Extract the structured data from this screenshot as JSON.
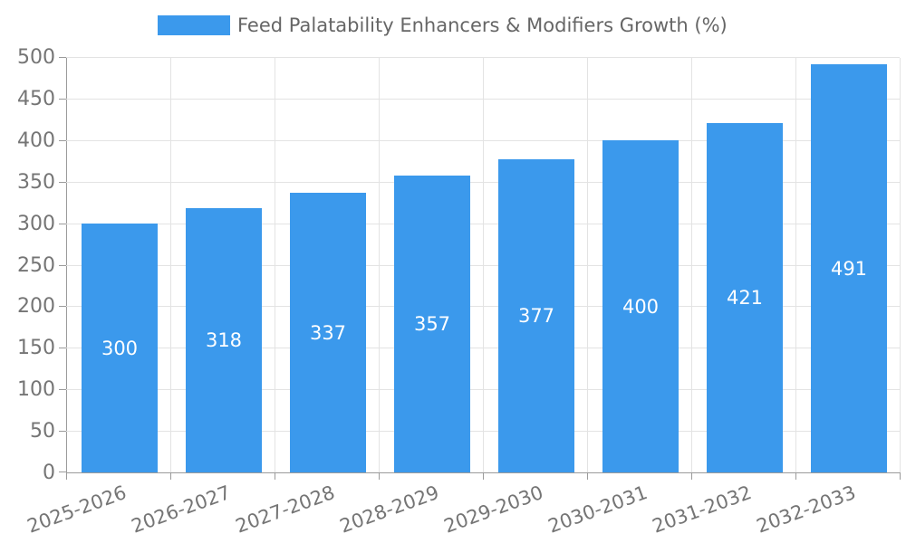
{
  "chart_data": {
    "type": "bar",
    "title": "Feed Palatability Enhancers & Modifiers Growth (%)",
    "categories": [
      "2025-2026",
      "2026-2027",
      "2027-2028",
      "2028-2029",
      "2029-2030",
      "2030-2031",
      "2031-2032",
      "2032-2033"
    ],
    "values": [
      300,
      318,
      337,
      357,
      377,
      400,
      421,
      491
    ],
    "xlabel": "",
    "ylabel": "",
    "ylim": [
      0,
      500
    ],
    "ytick_step": 50,
    "yticks": [
      "0",
      "50",
      "100",
      "150",
      "200",
      "250",
      "300",
      "350",
      "400",
      "450",
      "500"
    ],
    "grid": "on",
    "legend_position": "top-center",
    "value_labels": "inside-center",
    "colors": {
      "bar": "#3B99EC",
      "legend_text": "#666666",
      "axis_text": "#757575",
      "grid_line": "#E3E3E3",
      "axis_line": "#9B9B9B",
      "value_text": "#FFFFFF",
      "background": "#FFFFFF"
    }
  }
}
